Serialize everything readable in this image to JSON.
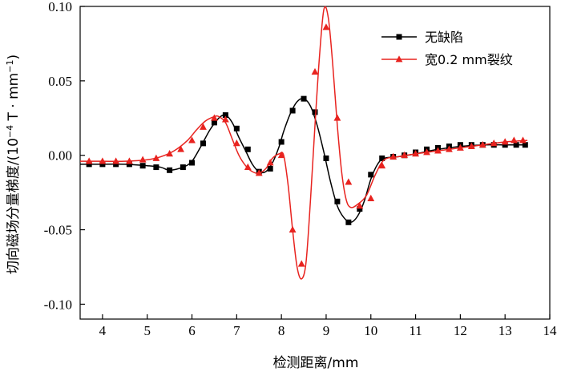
{
  "chart_data": {
    "type": "line",
    "xlabel": "检测距离/mm",
    "ylabel_main": "切向磁场分量梯度/(10",
    "ylabel_sup": "−4",
    "ylabel_mid": " T · mm",
    "ylabel_sup2": "−1",
    "ylabel_end": ")",
    "xlim": [
      3.5,
      14
    ],
    "ylim": [
      -0.11,
      0.1
    ],
    "xticks": [
      4,
      5,
      6,
      7,
      8,
      9,
      10,
      11,
      12,
      13,
      14
    ],
    "xtick_labels": [
      "4",
      "5",
      "6",
      "7",
      "8",
      "9",
      "10",
      "11",
      "12",
      "13",
      "14"
    ],
    "yticks": [
      -0.1,
      -0.05,
      0.0,
      0.05,
      0.1
    ],
    "ytick_labels": [
      "-0.10",
      "-0.05",
      "0.00",
      "0.05",
      "0.10"
    ],
    "legend_position": "top-right",
    "series": [
      {
        "name": "无缺陷",
        "color": "#000000",
        "marker": "square",
        "x": [
          3.5,
          4.0,
          4.5,
          5.0,
          5.3,
          5.5,
          5.8,
          6.0,
          6.2,
          6.4,
          6.6,
          6.75,
          6.9,
          7.05,
          7.2,
          7.35,
          7.5,
          7.65,
          7.8,
          7.95,
          8.05,
          8.2,
          8.35,
          8.5,
          8.65,
          8.8,
          8.95,
          9.1,
          9.25,
          9.4,
          9.55,
          9.7,
          9.85,
          10.0,
          10.15,
          10.3,
          10.6,
          11.0,
          11.5,
          12.0,
          12.5,
          13.0,
          13.5
        ],
        "y": [
          -0.006,
          -0.006,
          -0.006,
          -0.007,
          -0.008,
          -0.01,
          -0.008,
          -0.004,
          0.006,
          0.017,
          0.025,
          0.027,
          0.022,
          0.012,
          0.003,
          -0.006,
          -0.011,
          -0.011,
          -0.005,
          0.006,
          0.016,
          0.028,
          0.036,
          0.038,
          0.033,
          0.02,
          0.002,
          -0.018,
          -0.034,
          -0.042,
          -0.045,
          -0.041,
          -0.031,
          -0.016,
          -0.006,
          -0.002,
          -0.001,
          0.001,
          0.004,
          0.006,
          0.007,
          0.007,
          0.007
        ],
        "marker_x": [
          3.7,
          4.0,
          4.3,
          4.6,
          4.9,
          5.2,
          5.5,
          5.8,
          6.0,
          6.25,
          6.5,
          6.75,
          7.0,
          7.25,
          7.5,
          7.75,
          8.0,
          8.25,
          8.5,
          8.75,
          9.0,
          9.25,
          9.5,
          9.75,
          10.0,
          10.25,
          10.5,
          10.75,
          11.0,
          11.25,
          11.5,
          11.75,
          12.0,
          12.25,
          12.5,
          12.75,
          13.0,
          13.25,
          13.45
        ],
        "marker_y": [
          -0.006,
          -0.006,
          -0.006,
          -0.006,
          -0.007,
          -0.008,
          -0.01,
          -0.008,
          -0.005,
          0.008,
          0.022,
          0.027,
          0.018,
          0.004,
          -0.011,
          -0.009,
          0.009,
          0.03,
          0.038,
          0.029,
          -0.002,
          -0.031,
          -0.045,
          -0.036,
          -0.013,
          -0.002,
          -0.001,
          0.0,
          0.002,
          0.004,
          0.005,
          0.006,
          0.007,
          0.007,
          0.007,
          0.007,
          0.007,
          0.007,
          0.007
        ]
      },
      {
        "name": "宽0.2 mm裂纹",
        "color": "#e8231f",
        "marker": "triangle",
        "x": [
          3.5,
          4.0,
          4.5,
          5.0,
          5.3,
          5.6,
          5.9,
          6.1,
          6.3,
          6.5,
          6.6,
          6.75,
          6.9,
          7.05,
          7.2,
          7.35,
          7.5,
          7.65,
          7.8,
          7.95,
          8.05,
          8.15,
          8.25,
          8.35,
          8.45,
          8.55,
          8.65,
          8.75,
          8.85,
          8.95,
          9.05,
          9.15,
          9.25,
          9.35,
          9.45,
          9.55,
          9.7,
          9.9,
          10.1,
          10.3,
          10.6,
          11.0,
          11.5,
          12.0,
          12.5,
          13.0,
          13.5
        ],
        "y": [
          -0.004,
          -0.004,
          -0.004,
          -0.003,
          -0.001,
          0.003,
          0.01,
          0.017,
          0.023,
          0.026,
          0.026,
          0.022,
          0.011,
          0.0,
          -0.007,
          -0.011,
          -0.012,
          -0.009,
          -0.002,
          0.001,
          0.0,
          -0.02,
          -0.05,
          -0.075,
          -0.083,
          -0.072,
          -0.03,
          0.02,
          0.066,
          0.098,
          0.092,
          0.06,
          0.02,
          -0.012,
          -0.03,
          -0.035,
          -0.033,
          -0.027,
          -0.013,
          -0.003,
          -0.001,
          0.001,
          0.003,
          0.005,
          0.007,
          0.009,
          0.01
        ],
        "marker_x": [
          3.7,
          4.0,
          4.3,
          4.6,
          4.9,
          5.2,
          5.5,
          5.75,
          6.0,
          6.25,
          6.5,
          6.75,
          7.0,
          7.25,
          7.5,
          7.75,
          8.0,
          8.25,
          8.45,
          8.75,
          9.0,
          9.25,
          9.5,
          9.75,
          10.0,
          10.25,
          10.5,
          10.75,
          11.0,
          11.25,
          11.5,
          11.75,
          12.0,
          12.25,
          12.5,
          12.75,
          13.0,
          13.2,
          13.4
        ],
        "marker_y": [
          -0.004,
          -0.004,
          -0.004,
          -0.004,
          -0.003,
          -0.002,
          0.001,
          0.004,
          0.01,
          0.019,
          0.025,
          0.024,
          0.008,
          -0.008,
          -0.012,
          -0.005,
          0.0,
          -0.05,
          -0.073,
          0.056,
          0.086,
          0.025,
          -0.018,
          -0.034,
          -0.029,
          -0.007,
          -0.001,
          0.0,
          0.001,
          0.002,
          0.003,
          0.004,
          0.005,
          0.006,
          0.007,
          0.008,
          0.009,
          0.01,
          0.01
        ]
      }
    ]
  }
}
